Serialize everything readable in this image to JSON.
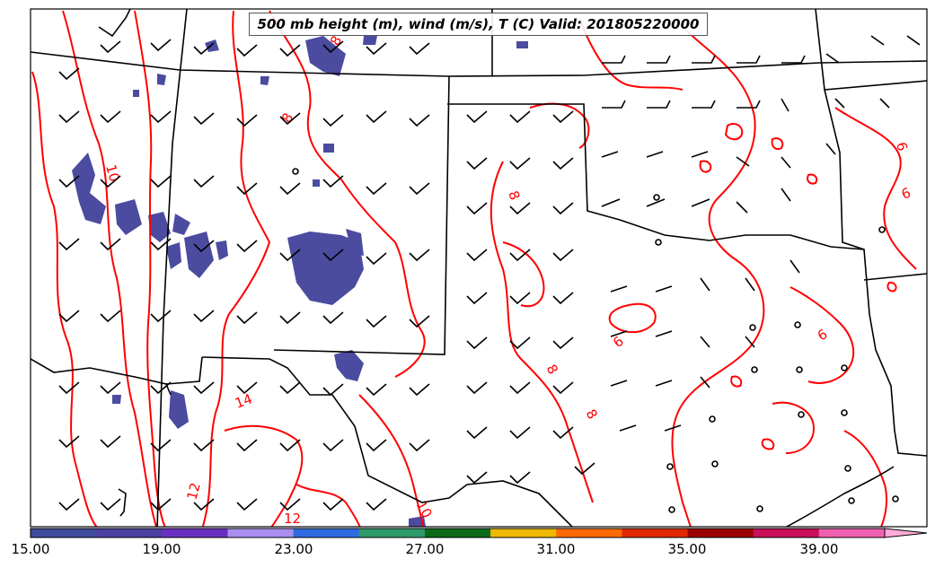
{
  "title": "500 mb height (m), wind (m/s), T (C) Valid: 201805220000",
  "colorbar": {
    "tick_labels": [
      "15.00",
      "19.00",
      "23.00",
      "27.00",
      "31.00",
      "35.00",
      "39.00"
    ],
    "colors": [
      "#404a9a",
      "#4b3f9f",
      "#6a2fc2",
      "#a98ef0",
      "#2f6be0",
      "#2f9a6a",
      "#0a6a18",
      "#f0b800",
      "#ff6a00",
      "#e02800",
      "#9a0000",
      "#c8105a",
      "#f060b0",
      "#ffaad8"
    ]
  },
  "contour_labels": [
    "10",
    "8",
    "8",
    "14",
    "12",
    "12",
    "10",
    "8",
    "8",
    "8",
    "6",
    "6",
    "6",
    "6"
  ],
  "colors": {
    "contour": "#ff0000",
    "shading": "#4b4ba0",
    "borders": "#000000",
    "barbs": "#000000"
  }
}
